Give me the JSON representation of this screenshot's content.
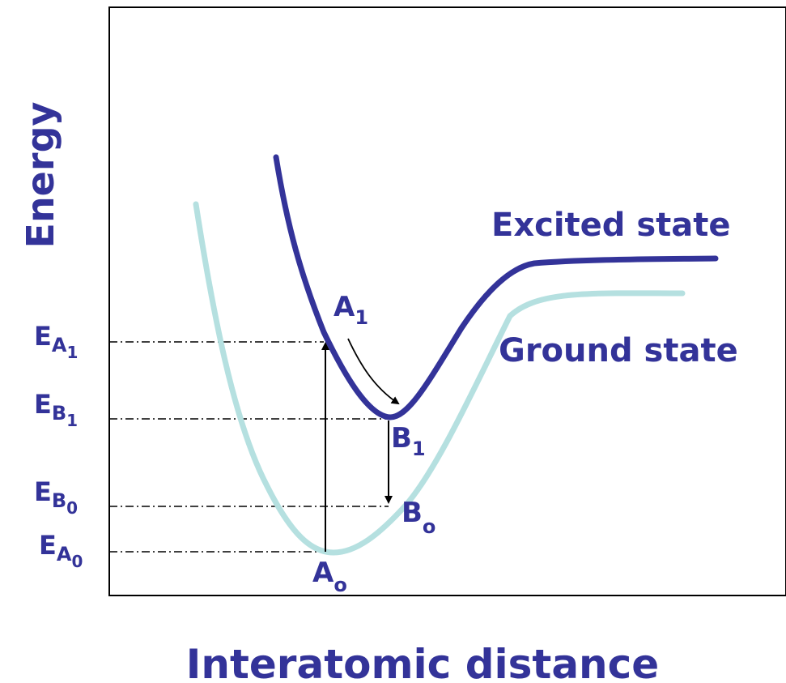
{
  "axes": {
    "y_label": "Energy",
    "x_label": "Interatomic distance"
  },
  "curves": {
    "excited": {
      "label": "Excited state",
      "color": "#333399"
    },
    "ground": {
      "label": "Ground state",
      "color": "#b5e0e0"
    }
  },
  "points": {
    "A1": {
      "main": "A",
      "sub": "1"
    },
    "B1": {
      "main": "B",
      "sub": "1"
    },
    "B0": {
      "main": "B",
      "sub": "o"
    },
    "A0": {
      "main": "A",
      "sub": "o"
    }
  },
  "energy_levels": [
    {
      "id": "EA1",
      "main": "E",
      "sub": "A",
      "subsub": "1"
    },
    {
      "id": "EB1",
      "main": "E",
      "sub": "B",
      "subsub": "1"
    },
    {
      "id": "EB0",
      "main": "E",
      "sub": "B",
      "subsub": "0"
    },
    {
      "id": "EA0",
      "main": "E",
      "sub": "A",
      "subsub": "0"
    }
  ],
  "colors": {
    "text": "#333399",
    "frame": "#000000",
    "guide": "#000000"
  }
}
